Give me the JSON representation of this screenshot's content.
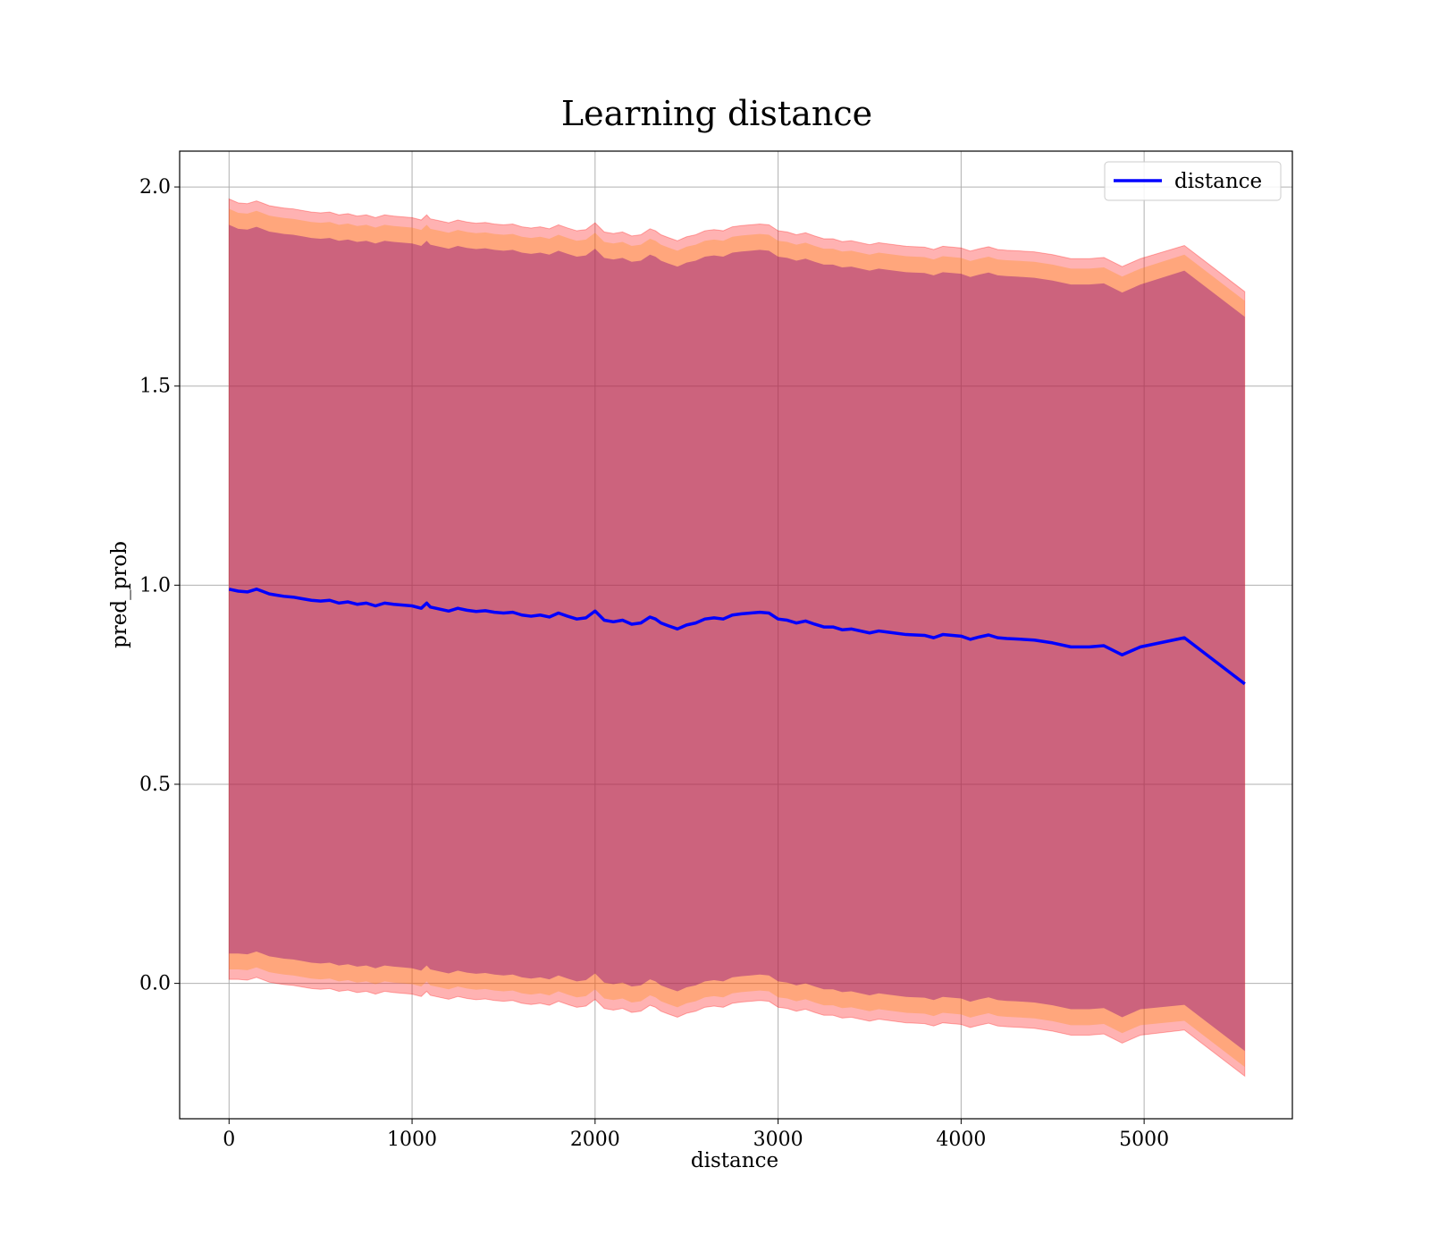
{
  "chart_data": {
    "type": "line",
    "title": "Learning distance",
    "xlabel": "distance",
    "ylabel": "pred_prob",
    "xlim": [
      -270,
      5810
    ],
    "ylim": [
      -0.34,
      2.09
    ],
    "x_ticks": [
      0,
      1000,
      2000,
      3000,
      4000,
      5000
    ],
    "x_tick_labels": [
      "0",
      "1000",
      "2000",
      "3000",
      "4000",
      "5000"
    ],
    "y_ticks": [
      0.0,
      0.5,
      1.0,
      1.5,
      2.0
    ],
    "y_tick_labels": [
      "0.0",
      "0.5",
      "1.0",
      "1.5",
      "2.0"
    ],
    "grid": true,
    "legend_position": "top-right",
    "colors": {
      "line": "#0000ff",
      "band_outer": "#ff0000",
      "band_middle": "#ff8c00",
      "band_inner": "#800080"
    },
    "series": [
      {
        "name": "distance",
        "x": [
          0,
          50,
          100,
          150,
          180,
          220,
          260,
          300,
          350,
          400,
          450,
          500,
          550,
          600,
          650,
          700,
          750,
          800,
          850,
          900,
          950,
          1000,
          1050,
          1080,
          1100,
          1150,
          1200,
          1250,
          1300,
          1350,
          1400,
          1450,
          1500,
          1550,
          1600,
          1650,
          1700,
          1750,
          1800,
          1850,
          1900,
          1950,
          2000,
          2050,
          2100,
          2150,
          2200,
          2250,
          2300,
          2330,
          2360,
          2400,
          2450,
          2500,
          2550,
          2600,
          2650,
          2700,
          2750,
          2800,
          2850,
          2900,
          2950,
          3000,
          3050,
          3100,
          3150,
          3200,
          3250,
          3300,
          3350,
          3400,
          3500,
          3550,
          3600,
          3700,
          3800,
          3850,
          3900,
          4000,
          4050,
          4100,
          4150,
          4200,
          4250,
          4300,
          4400,
          4500,
          4600,
          4700,
          4780,
          4880,
          4980,
          5220,
          5550
        ],
        "y": [
          0.99,
          0.985,
          0.983,
          0.99,
          0.985,
          0.978,
          0.975,
          0.972,
          0.97,
          0.966,
          0.962,
          0.96,
          0.962,
          0.955,
          0.958,
          0.952,
          0.955,
          0.948,
          0.955,
          0.952,
          0.95,
          0.948,
          0.942,
          0.955,
          0.945,
          0.94,
          0.935,
          0.942,
          0.937,
          0.934,
          0.936,
          0.932,
          0.93,
          0.932,
          0.925,
          0.922,
          0.925,
          0.92,
          0.93,
          0.922,
          0.915,
          0.918,
          0.935,
          0.912,
          0.908,
          0.912,
          0.902,
          0.905,
          0.92,
          0.915,
          0.905,
          0.898,
          0.89,
          0.9,
          0.905,
          0.915,
          0.918,
          0.915,
          0.925,
          0.928,
          0.93,
          0.932,
          0.93,
          0.915,
          0.912,
          0.905,
          0.91,
          0.902,
          0.895,
          0.895,
          0.888,
          0.89,
          0.88,
          0.885,
          0.882,
          0.876,
          0.874,
          0.868,
          0.876,
          0.872,
          0.864,
          0.87,
          0.875,
          0.868,
          0.866,
          0.865,
          0.862,
          0.855,
          0.845,
          0.845,
          0.848,
          0.825,
          0.845,
          0.868,
          0.752
        ],
        "band_outer": [
          0.98,
          0.975,
          0.975,
          0.975,
          0.975,
          0.975,
          0.975,
          0.975,
          0.975,
          0.975,
          0.975,
          0.975,
          0.975,
          0.975,
          0.975,
          0.975,
          0.975,
          0.975,
          0.975,
          0.975,
          0.975,
          0.975,
          0.975,
          0.975,
          0.975,
          0.975,
          0.975,
          0.975,
          0.975,
          0.975,
          0.975,
          0.975,
          0.975,
          0.975,
          0.975,
          0.975,
          0.975,
          0.975,
          0.975,
          0.975,
          0.975,
          0.975,
          0.975,
          0.975,
          0.975,
          0.975,
          0.975,
          0.975,
          0.975,
          0.975,
          0.975,
          0.975,
          0.975,
          0.975,
          0.975,
          0.975,
          0.975,
          0.975,
          0.975,
          0.975,
          0.975,
          0.975,
          0.975,
          0.975,
          0.975,
          0.975,
          0.975,
          0.975,
          0.975,
          0.975,
          0.975,
          0.975,
          0.975,
          0.975,
          0.975,
          0.975,
          0.975,
          0.975,
          0.975,
          0.975,
          0.975,
          0.975,
          0.975,
          0.975,
          0.975,
          0.975,
          0.975,
          0.975,
          0.975,
          0.975,
          0.975,
          0.975,
          0.975,
          0.985,
          0.985
        ],
        "band_middle": [
          0.955,
          0.95,
          0.95,
          0.95,
          0.95,
          0.95,
          0.95,
          0.95,
          0.95,
          0.95,
          0.95,
          0.95,
          0.95,
          0.95,
          0.95,
          0.95,
          0.95,
          0.95,
          0.95,
          0.95,
          0.95,
          0.95,
          0.95,
          0.95,
          0.95,
          0.95,
          0.95,
          0.95,
          0.95,
          0.95,
          0.95,
          0.95,
          0.95,
          0.95,
          0.95,
          0.95,
          0.95,
          0.95,
          0.95,
          0.95,
          0.95,
          0.95,
          0.95,
          0.95,
          0.95,
          0.95,
          0.95,
          0.95,
          0.95,
          0.95,
          0.95,
          0.95,
          0.95,
          0.95,
          0.95,
          0.95,
          0.95,
          0.95,
          0.95,
          0.95,
          0.95,
          0.95,
          0.95,
          0.95,
          0.95,
          0.95,
          0.95,
          0.95,
          0.95,
          0.95,
          0.95,
          0.95,
          0.95,
          0.95,
          0.95,
          0.95,
          0.95,
          0.95,
          0.95,
          0.95,
          0.95,
          0.95,
          0.95,
          0.95,
          0.95,
          0.95,
          0.95,
          0.95,
          0.95,
          0.95,
          0.95,
          0.95,
          0.95,
          0.962,
          0.962
        ],
        "band_inner": [
          0.915,
          0.91,
          0.91,
          0.91,
          0.91,
          0.91,
          0.91,
          0.91,
          0.91,
          0.91,
          0.91,
          0.91,
          0.91,
          0.91,
          0.91,
          0.91,
          0.91,
          0.91,
          0.91,
          0.91,
          0.91,
          0.91,
          0.91,
          0.91,
          0.91,
          0.91,
          0.91,
          0.91,
          0.91,
          0.91,
          0.91,
          0.91,
          0.91,
          0.91,
          0.91,
          0.91,
          0.91,
          0.91,
          0.91,
          0.91,
          0.91,
          0.91,
          0.91,
          0.91,
          0.91,
          0.91,
          0.91,
          0.91,
          0.91,
          0.91,
          0.91,
          0.91,
          0.91,
          0.91,
          0.91,
          0.91,
          0.91,
          0.91,
          0.91,
          0.91,
          0.91,
          0.91,
          0.91,
          0.91,
          0.91,
          0.91,
          0.91,
          0.91,
          0.91,
          0.91,
          0.91,
          0.91,
          0.91,
          0.91,
          0.91,
          0.91,
          0.91,
          0.91,
          0.91,
          0.91,
          0.91,
          0.91,
          0.91,
          0.91,
          0.91,
          0.91,
          0.91,
          0.91,
          0.91,
          0.91,
          0.91,
          0.91,
          0.91,
          0.922,
          0.922
        ]
      }
    ]
  }
}
